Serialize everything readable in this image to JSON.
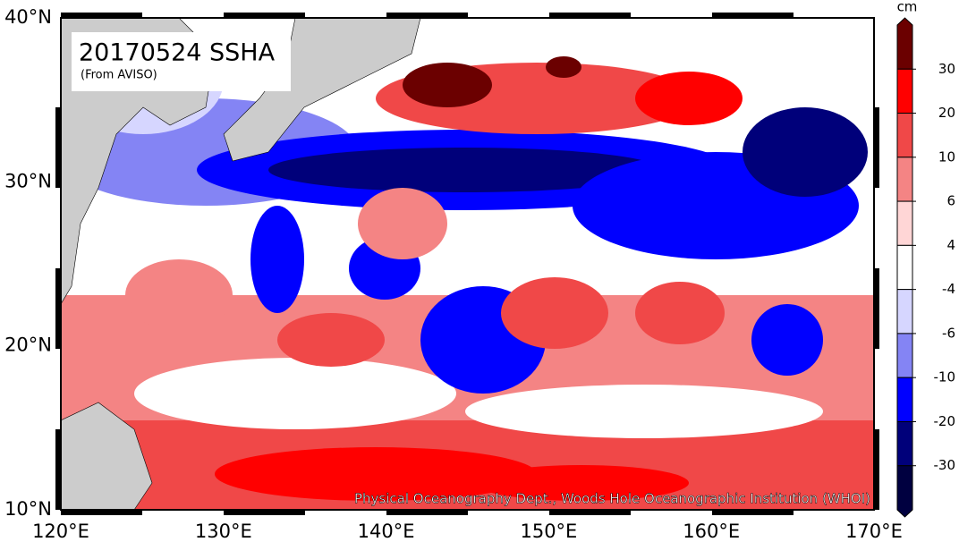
{
  "map": {
    "title": "20170524 SSHA",
    "subtitle": "(From AVISO)",
    "credit": "Physical Oceanography Dept., Woods Hole Oceanographic Institution (WHOI)",
    "lat_labels": [
      "40°N",
      "30°N",
      "20°N",
      "10°N"
    ],
    "lon_labels": [
      "120°E",
      "130°E",
      "140°E",
      "150°E",
      "160°E",
      "170°E"
    ],
    "colorbar": {
      "unit": "cm",
      "ticks": [
        30,
        20,
        10,
        6,
        4,
        -4,
        -6,
        -10,
        -20,
        -30
      ],
      "colors": [
        "#6b0000",
        "#ff0000",
        "#f04848",
        "#f48484",
        "#ffd6d6",
        "#ffffff",
        "#d6d6ff",
        "#8484f4",
        "#0000ff",
        "#00007a",
        "#000040"
      ]
    }
  }
}
